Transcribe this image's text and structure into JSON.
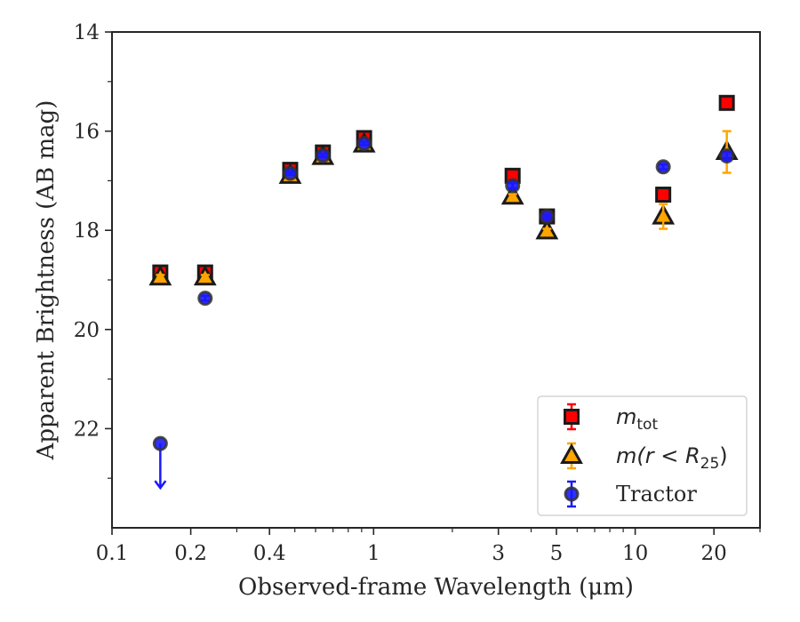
{
  "chart_data": {
    "type": "scatter",
    "xlabel": "Observed-frame Wavelength (μm)",
    "ylabel": "Apparent Brightness (AB mag)",
    "xscale": "log",
    "xlim": [
      0.1,
      30
    ],
    "ylim": [
      24.0,
      14.0
    ],
    "y_inverted": true,
    "x_ticks": [
      {
        "value": 0.1,
        "label": "0.1"
      },
      {
        "value": 0.2,
        "label": "0.2"
      },
      {
        "value": 0.4,
        "label": "0.4"
      },
      {
        "value": 1,
        "label": "1"
      },
      {
        "value": 3,
        "label": "3"
      },
      {
        "value": 5,
        "label": "5"
      },
      {
        "value": 10,
        "label": "10"
      },
      {
        "value": 20,
        "label": "20"
      }
    ],
    "x_minor_ticks": [
      0.3,
      0.5,
      0.6,
      0.7,
      0.8,
      0.9,
      2,
      4,
      6,
      7,
      8,
      9,
      30
    ],
    "y_ticks": [
      {
        "value": 14,
        "label": "14"
      },
      {
        "value": 16,
        "label": "16"
      },
      {
        "value": 18,
        "label": "18"
      },
      {
        "value": 20,
        "label": "20"
      },
      {
        "value": 22,
        "label": "22"
      }
    ],
    "y_minor_ticks": [
      15,
      17,
      19,
      21,
      23
    ],
    "grid": false,
    "legend_position": "lower-right",
    "series": [
      {
        "name_main": "m",
        "name_sub": "tot",
        "marker": "square",
        "color": "#ff0000",
        "edgecolor": "#1a1a1a",
        "errcolor": "#ff0000",
        "points": [
          {
            "x": 0.153,
            "y": 18.85,
            "err": 0.05
          },
          {
            "x": 0.227,
            "y": 18.85,
            "err": 0.05
          },
          {
            "x": 0.48,
            "y": 16.78,
            "err": 0.03
          },
          {
            "x": 0.64,
            "y": 16.43,
            "err": 0.03
          },
          {
            "x": 0.92,
            "y": 16.14,
            "err": 0.03
          },
          {
            "x": 3.4,
            "y": 16.9,
            "err": 0.03
          },
          {
            "x": 4.6,
            "y": 17.72,
            "err": 0.03
          },
          {
            "x": 12.8,
            "y": 17.28,
            "err": 0.05
          },
          {
            "x": 22.4,
            "y": 15.43,
            "err": 0.05
          }
        ]
      },
      {
        "name_main": "m(r < R",
        "name_sub": "25",
        "name_tail": ")",
        "marker": "triangle",
        "color": "#ffa500",
        "edgecolor": "#1a1a1a",
        "errcolor": "#ffa500",
        "points": [
          {
            "x": 0.153,
            "y": 18.95,
            "err": 0.05
          },
          {
            "x": 0.227,
            "y": 18.95,
            "err": 0.05
          },
          {
            "x": 0.48,
            "y": 16.9,
            "err": 0.03
          },
          {
            "x": 0.64,
            "y": 16.52,
            "err": 0.03
          },
          {
            "x": 0.92,
            "y": 16.27,
            "err": 0.03
          },
          {
            "x": 3.4,
            "y": 17.32,
            "err": 0.05
          },
          {
            "x": 4.6,
            "y": 18.02,
            "err": 0.05
          },
          {
            "x": 12.8,
            "y": 17.72,
            "err": 0.25
          },
          {
            "x": 22.4,
            "y": 16.42,
            "err": 0.42
          }
        ]
      },
      {
        "name_main": "Tractor",
        "marker": "circle",
        "color": "#1a1aff",
        "edgecolor": "#333333",
        "errcolor": "#1a1aff",
        "points": [
          {
            "x": 0.153,
            "y": 22.3,
            "err": 0.0,
            "upper_limit": true
          },
          {
            "x": 0.227,
            "y": 19.37,
            "err": 0.05
          },
          {
            "x": 0.48,
            "y": 16.85,
            "err": 0.03
          },
          {
            "x": 0.64,
            "y": 16.49,
            "err": 0.03
          },
          {
            "x": 0.92,
            "y": 16.25,
            "err": 0.03
          },
          {
            "x": 3.4,
            "y": 17.1,
            "err": 0.05
          },
          {
            "x": 4.6,
            "y": 17.72,
            "err": 0.03
          },
          {
            "x": 12.8,
            "y": 16.72,
            "err": 0.05
          },
          {
            "x": 22.4,
            "y": 16.5,
            "err": 0.08
          }
        ]
      }
    ]
  }
}
